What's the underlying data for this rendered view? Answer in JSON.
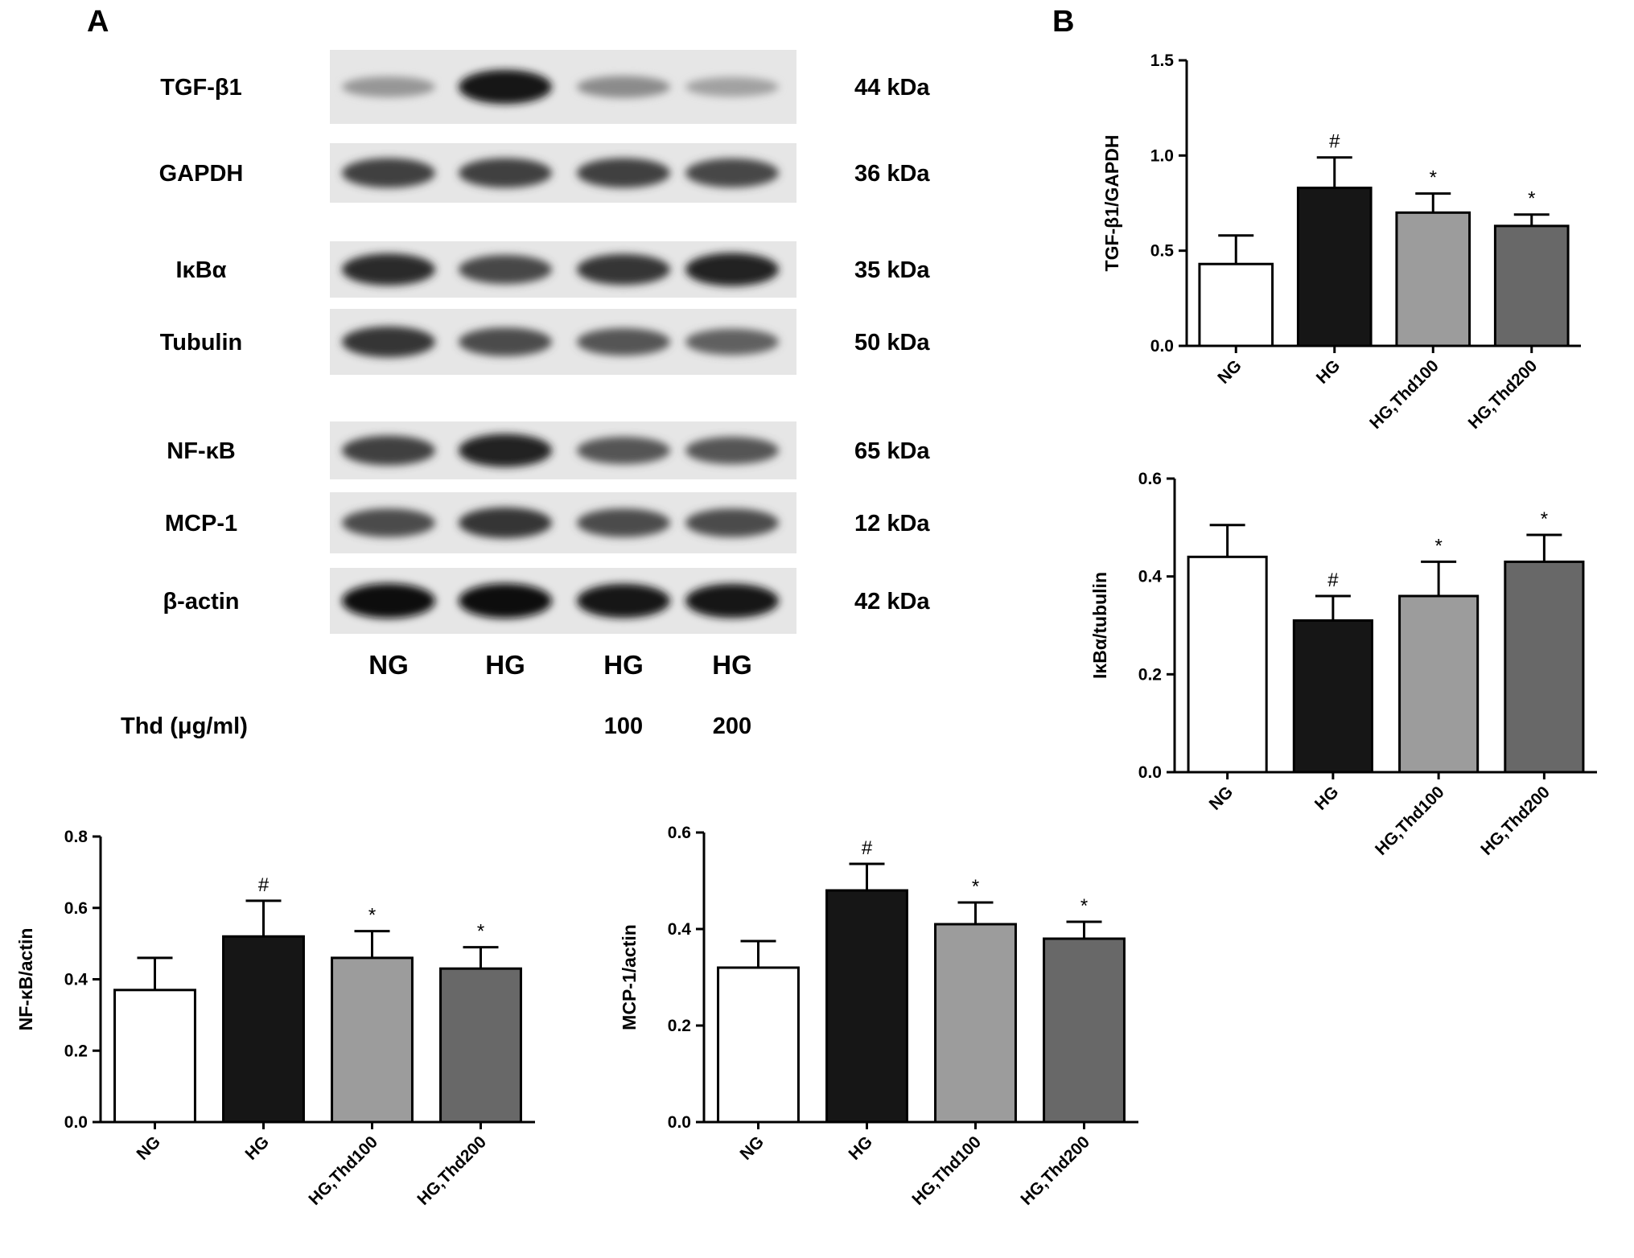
{
  "panel_labels": {
    "a": "A",
    "b": "B"
  },
  "blot_panel": {
    "proteins": [
      {
        "name": "TGF-β1",
        "kda": "44 kDa",
        "intensities": [
          0.35,
          0.95,
          0.4,
          0.3
        ]
      },
      {
        "name": "GAPDH",
        "kda": "36 kDa",
        "intensities": [
          0.75,
          0.75,
          0.75,
          0.72
        ]
      },
      {
        "name": "IκBα",
        "kda": "35 kDa",
        "intensities": [
          0.85,
          0.72,
          0.8,
          0.9
        ]
      },
      {
        "name": "Tubulin",
        "kda": "50 kDa",
        "intensities": [
          0.8,
          0.7,
          0.65,
          0.6
        ]
      },
      {
        "name": "NF-κB",
        "kda": "65 kDa",
        "intensities": [
          0.75,
          0.9,
          0.65,
          0.65
        ]
      },
      {
        "name": "MCP-1",
        "kda": "12 kDa",
        "intensities": [
          0.7,
          0.8,
          0.7,
          0.7
        ]
      },
      {
        "name": "β-actin",
        "kda": "42 kDa",
        "intensities": [
          0.98,
          0.98,
          0.95,
          0.95
        ]
      }
    ],
    "lanes": [
      "NG",
      "HG",
      "HG",
      "HG"
    ],
    "thd_row_label": "Thd (μg/ml)",
    "thd_values": [
      "",
      "",
      "100",
      "200"
    ]
  },
  "chart_data": [
    {
      "type": "bar",
      "panel": "B",
      "ylabel": "TGF-β1/GAPDH",
      "categories": [
        "NG",
        "HG",
        "HG,Thd100",
        "HG,Thd200"
      ],
      "values": [
        0.43,
        0.83,
        0.7,
        0.63
      ],
      "errors": [
        0.15,
        0.16,
        0.1,
        0.06
      ],
      "significance": [
        "",
        "#",
        "*",
        "*"
      ],
      "ylim": [
        0,
        1.5
      ],
      "yticks": [
        "0.0",
        "0.5",
        "1.0",
        "1.5"
      ],
      "bar_colors": [
        "#ffffff",
        "#161616",
        "#9c9c9c",
        "#686868"
      ]
    },
    {
      "type": "bar",
      "panel": "B",
      "ylabel": "IκBα/tubulin",
      "categories": [
        "NG",
        "HG",
        "HG,Thd100",
        "HG,Thd200"
      ],
      "values": [
        0.44,
        0.31,
        0.36,
        0.43
      ],
      "errors": [
        0.065,
        0.05,
        0.07,
        0.055
      ],
      "significance": [
        "",
        "#",
        "*",
        "*"
      ],
      "ylim": [
        0,
        0.6
      ],
      "yticks": [
        "0.0",
        "0.2",
        "0.4",
        "0.6"
      ],
      "bar_colors": [
        "#ffffff",
        "#161616",
        "#9c9c9c",
        "#686868"
      ]
    },
    {
      "type": "bar",
      "panel": "A",
      "ylabel": "NF-κB/actin",
      "categories": [
        "NG",
        "HG",
        "HG,Thd100",
        "HG,Thd200"
      ],
      "values": [
        0.37,
        0.52,
        0.46,
        0.43
      ],
      "errors": [
        0.09,
        0.1,
        0.075,
        0.06
      ],
      "significance": [
        "",
        "#",
        "*",
        "*"
      ],
      "ylim": [
        0,
        0.8
      ],
      "yticks": [
        "0.0",
        "0.2",
        "0.4",
        "0.6",
        "0.8"
      ],
      "bar_colors": [
        "#ffffff",
        "#161616",
        "#9c9c9c",
        "#686868"
      ]
    },
    {
      "type": "bar",
      "panel": "A",
      "ylabel": "MCP-1/actin",
      "categories": [
        "NG",
        "HG",
        "HG,Thd100",
        "HG,Thd200"
      ],
      "values": [
        0.32,
        0.48,
        0.41,
        0.38
      ],
      "errors": [
        0.055,
        0.055,
        0.045,
        0.035
      ],
      "significance": [
        "",
        "#",
        "*",
        "*"
      ],
      "ylim": [
        0,
        0.6
      ],
      "yticks": [
        "0.0",
        "0.2",
        "0.4",
        "0.6"
      ],
      "bar_colors": [
        "#ffffff",
        "#161616",
        "#9c9c9c",
        "#686868"
      ]
    }
  ]
}
